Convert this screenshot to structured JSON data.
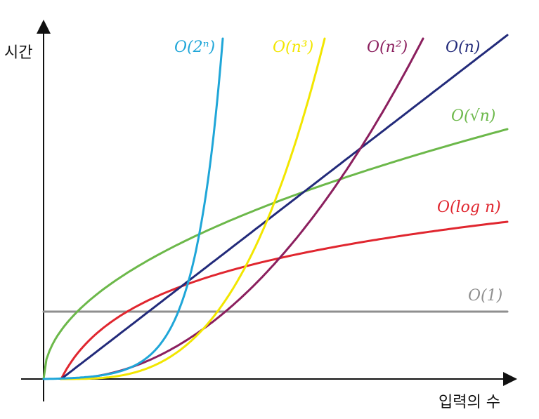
{
  "chart_data": {
    "type": "line",
    "title": "",
    "xlabel": "입력의 수",
    "ylabel": "시간",
    "xlim": [
      0,
      10
    ],
    "ylim": [
      0,
      10
    ],
    "grid": false,
    "legend": "inline",
    "series": [
      {
        "name": "O(1)",
        "func": "constant",
        "color": "#8f8f8f"
      },
      {
        "name": "O(log n)",
        "func": "log",
        "color": "#e0262f"
      },
      {
        "name": "O(√n)",
        "func": "sqrt",
        "color": "#6cb84a"
      },
      {
        "name": "O(n)",
        "func": "linear",
        "color": "#222a7a"
      },
      {
        "name": "O(n²)",
        "func": "quadratic",
        "color": "#8b1f5e"
      },
      {
        "name": "O(n³)",
        "func": "cubic",
        "color": "#f2e600"
      },
      {
        "name": "O(2ⁿ)",
        "func": "exponential",
        "color": "#1fa6d8"
      }
    ]
  }
}
